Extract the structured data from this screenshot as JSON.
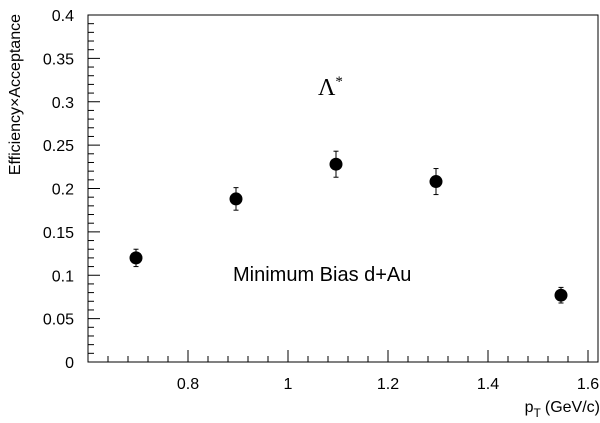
{
  "chart_data": {
    "type": "scatter",
    "title": "",
    "xlabel": "p",
    "xlabel_sub": "T",
    "xlabel_unit": "(GeV/c)",
    "ylabel": "Efficiency×Acceptance",
    "xlim": [
      0.6,
      1.62
    ],
    "ylim": [
      0,
      0.4
    ],
    "x_ticks": [
      0.8,
      1.0,
      1.2,
      1.4,
      1.6
    ],
    "x_tick_labels": [
      "0.8",
      "1",
      "1.2",
      "1.4",
      "1.6"
    ],
    "y_ticks": [
      0,
      0.05,
      0.1,
      0.15,
      0.2,
      0.25,
      0.3,
      0.35,
      0.4
    ],
    "y_tick_labels": [
      "0",
      "0.05",
      "0.1",
      "0.15",
      "0.2",
      "0.25",
      "0.3",
      "0.35",
      "0.4"
    ],
    "grid": false,
    "series": [
      {
        "marker": "filled-circle",
        "color": "#000000",
        "points": [
          {
            "x": 0.696,
            "y": 0.12,
            "err": 0.01
          },
          {
            "x": 0.896,
            "y": 0.188,
            "err": 0.013
          },
          {
            "x": 1.096,
            "y": 0.228,
            "err": 0.015
          },
          {
            "x": 1.296,
            "y": 0.208,
            "err": 0.015
          },
          {
            "x": 1.546,
            "y": 0.077,
            "err": 0.009
          }
        ]
      }
    ],
    "annotations": {
      "particle": "Λ",
      "particle_sup": "*",
      "label": "Minimum Bias d+Au"
    }
  }
}
